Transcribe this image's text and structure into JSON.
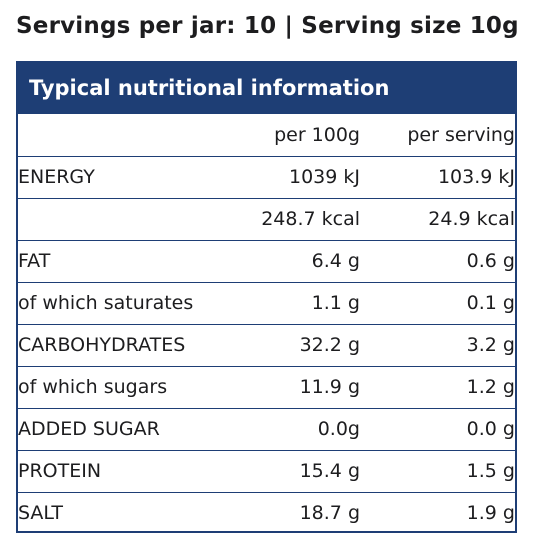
{
  "header": {
    "servings_text": "Servings per jar: 10 | Serving size 10g"
  },
  "panel": {
    "title": "Typical nutritional information",
    "columns": {
      "label": "",
      "per_100g": "per 100g",
      "per_serving": "per serving"
    },
    "rows": [
      {
        "label": "ENERGY",
        "per_100g": "1039 kJ",
        "per_serving": "103.9 kJ"
      },
      {
        "label": "",
        "per_100g": "248.7 kcal",
        "per_serving": "24.9 kcal"
      },
      {
        "label": "FAT",
        "per_100g": "6.4 g",
        "per_serving": "0.6 g"
      },
      {
        "label": "of which saturates",
        "per_100g": "1.1 g",
        "per_serving": "0.1 g"
      },
      {
        "label": "CARBOHYDRATES",
        "per_100g": "32.2 g",
        "per_serving": "3.2 g"
      },
      {
        "label": "of which sugars",
        "per_100g": "11.9 g",
        "per_serving": "1.2 g"
      },
      {
        "label": "ADDED SUGAR",
        "per_100g": "0.0g",
        "per_serving": "0.0 g"
      },
      {
        "label": "PROTEIN",
        "per_100g": "15.4 g",
        "per_serving": "1.5 g"
      },
      {
        "label": "SALT",
        "per_100g": "18.7 g",
        "per_serving": "1.9 g"
      }
    ]
  },
  "colors": {
    "accent": "#1e3e75",
    "text": "#1d1d1f"
  }
}
